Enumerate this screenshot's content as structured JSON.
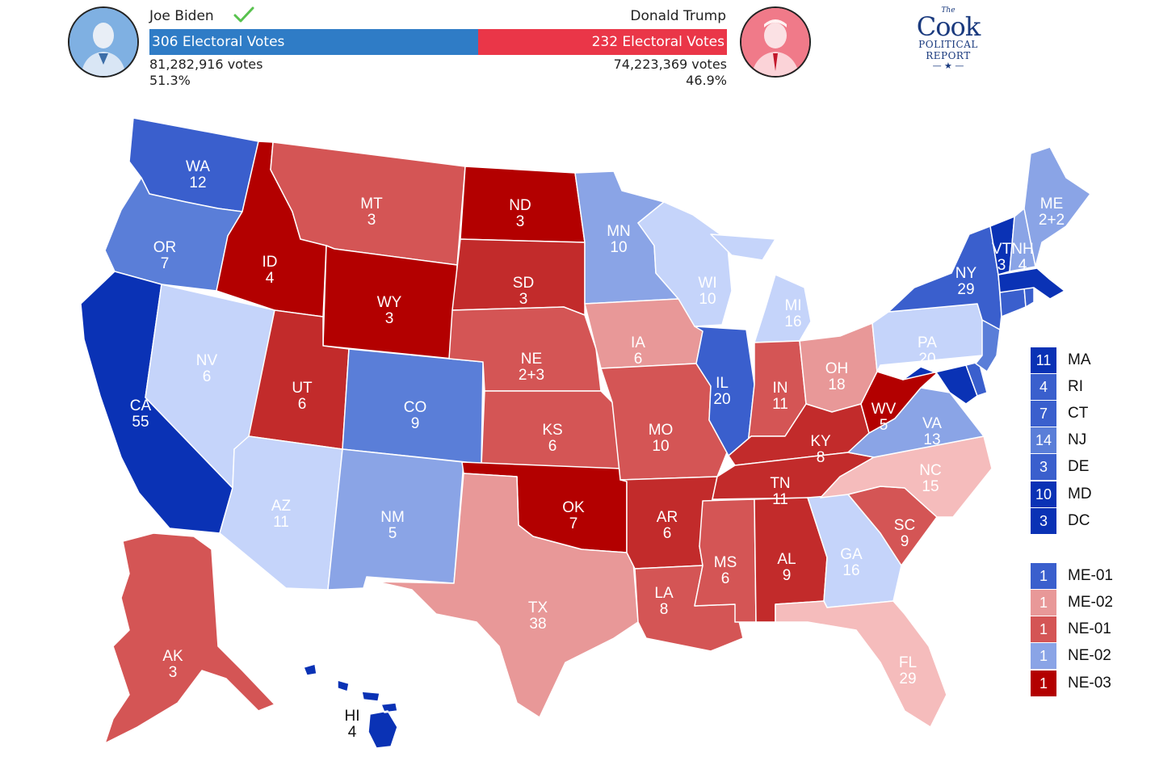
{
  "header": {
    "biden": {
      "name": "Joe Biden",
      "electoral_label": "306 Electoral Votes",
      "popular_votes": "81,282,916 votes",
      "percent": "51.3%",
      "color": "#2f7cc6",
      "winner_icon": "check-icon"
    },
    "trump": {
      "name": "Donald Trump",
      "electoral_label": "232 Electoral Votes",
      "popular_votes": "74,223,369 votes",
      "percent": "46.9%",
      "color": "#ea3648"
    },
    "logo": {
      "the": "The",
      "cook": "Cook",
      "political": "POLITICAL",
      "report": "REPORT"
    }
  },
  "palette": {
    "dem_safe": "#0a32b5",
    "dem_likely": "#3a5fcd",
    "dem_lean": "#5a7ed8",
    "dem_tilt": "#8aa4e6",
    "dem_toss": "#c5d4fa",
    "rep_safe": "#b30000",
    "rep_likely": "#c22b2b",
    "rep_lean": "#d45555",
    "rep_tilt": "#e89898",
    "rep_toss": "#f5bcbc"
  },
  "states": [
    {
      "code": "WA",
      "ev": "12"
    },
    {
      "code": "OR",
      "ev": "7"
    },
    {
      "code": "CA",
      "ev": "55"
    },
    {
      "code": "NV",
      "ev": "6"
    },
    {
      "code": "ID",
      "ev": "4"
    },
    {
      "code": "MT",
      "ev": "3"
    },
    {
      "code": "WY",
      "ev": "3"
    },
    {
      "code": "UT",
      "ev": "6"
    },
    {
      "code": "AZ",
      "ev": "11"
    },
    {
      "code": "CO",
      "ev": "9"
    },
    {
      "code": "NM",
      "ev": "5"
    },
    {
      "code": "ND",
      "ev": "3"
    },
    {
      "code": "SD",
      "ev": "3"
    },
    {
      "code": "NE",
      "ev": "2+3"
    },
    {
      "code": "KS",
      "ev": "6"
    },
    {
      "code": "OK",
      "ev": "7"
    },
    {
      "code": "TX",
      "ev": "38"
    },
    {
      "code": "MN",
      "ev": "10"
    },
    {
      "code": "IA",
      "ev": "6"
    },
    {
      "code": "MO",
      "ev": "10"
    },
    {
      "code": "AR",
      "ev": "6"
    },
    {
      "code": "LA",
      "ev": "8"
    },
    {
      "code": "WI",
      "ev": "10"
    },
    {
      "code": "IL",
      "ev": "20"
    },
    {
      "code": "MI",
      "ev": "16"
    },
    {
      "code": "IN",
      "ev": "11"
    },
    {
      "code": "OH",
      "ev": "18"
    },
    {
      "code": "KY",
      "ev": "8"
    },
    {
      "code": "TN",
      "ev": "11"
    },
    {
      "code": "MS",
      "ev": "6"
    },
    {
      "code": "AL",
      "ev": "9"
    },
    {
      "code": "GA",
      "ev": "16"
    },
    {
      "code": "FL",
      "ev": "29"
    },
    {
      "code": "SC",
      "ev": "9"
    },
    {
      "code": "NC",
      "ev": "15"
    },
    {
      "code": "VA",
      "ev": "13"
    },
    {
      "code": "WV",
      "ev": "5"
    },
    {
      "code": "PA",
      "ev": "20"
    },
    {
      "code": "NY",
      "ev": "29"
    },
    {
      "code": "VT",
      "ev": "3"
    },
    {
      "code": "NH",
      "ev": "4"
    },
    {
      "code": "ME",
      "ev": "2+2"
    },
    {
      "code": "AK",
      "ev": "3"
    },
    {
      "code": "HI",
      "ev": "4"
    }
  ],
  "legend_small_states": [
    {
      "ev": "11",
      "code": "MA",
      "color": "#0a32b5"
    },
    {
      "ev": "4",
      "code": "RI",
      "color": "#3a5fcd"
    },
    {
      "ev": "7",
      "code": "CT",
      "color": "#3a5fcd"
    },
    {
      "ev": "14",
      "code": "NJ",
      "color": "#5a7ed8"
    },
    {
      "ev": "3",
      "code": "DE",
      "color": "#3a5fcd"
    },
    {
      "ev": "10",
      "code": "MD",
      "color": "#0a32b5"
    },
    {
      "ev": "3",
      "code": "DC",
      "color": "#0a32b5"
    }
  ],
  "legend_districts": [
    {
      "ev": "1",
      "code": "ME-01",
      "color": "#3a5fcd"
    },
    {
      "ev": "1",
      "code": "ME-02",
      "color": "#e89898"
    },
    {
      "ev": "1",
      "code": "NE-01",
      "color": "#d45555"
    },
    {
      "ev": "1",
      "code": "NE-02",
      "color": "#8aa4e6"
    },
    {
      "ev": "1",
      "code": "NE-03",
      "color": "#b30000"
    }
  ]
}
